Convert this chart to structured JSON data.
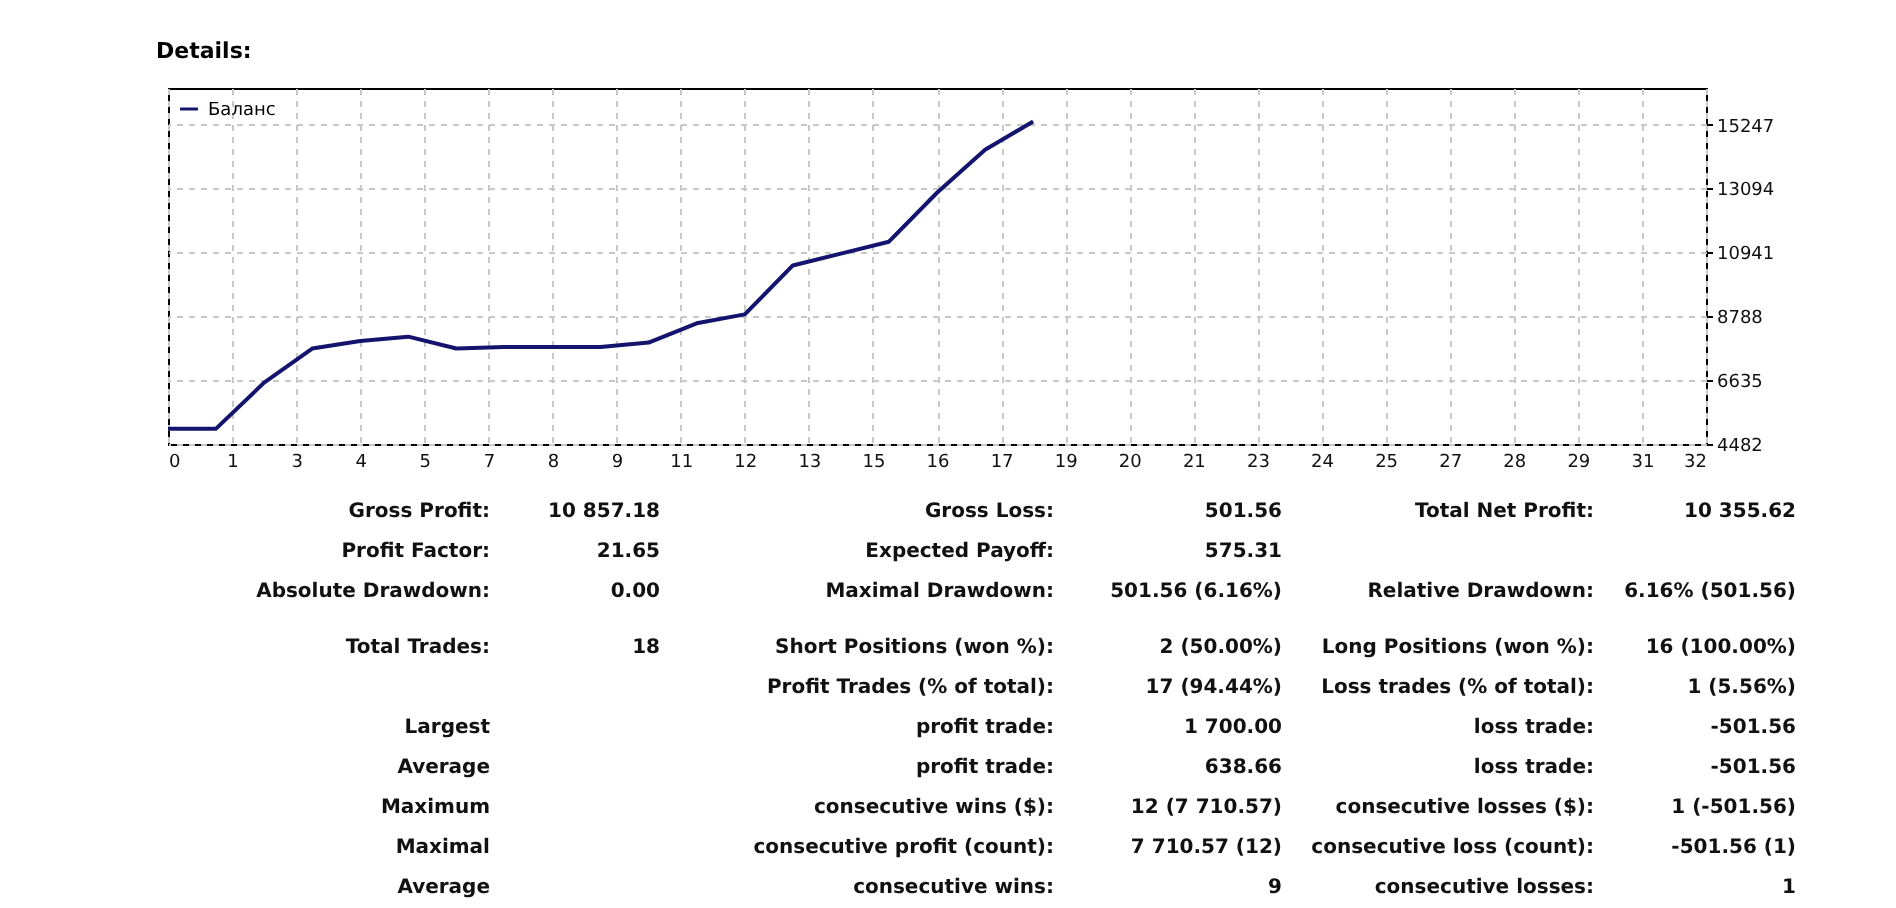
{
  "chart_data": {
    "type": "line",
    "title": "Details:",
    "x": [
      0,
      1,
      2,
      3,
      4,
      5,
      6,
      7,
      8,
      9,
      10,
      11,
      12,
      13,
      14,
      15,
      16,
      17,
      18
    ],
    "series": [
      {
        "name": "Баланс",
        "color": "#14146e",
        "values": [
          5000,
          5000,
          6550,
          7700,
          7950,
          8100,
          7700,
          7750,
          7750,
          7750,
          7900,
          8550,
          8850,
          10500,
          10900,
          11300,
          12950,
          14400,
          15350
        ]
      }
    ],
    "xlim": [
      0,
      32
    ],
    "xticks": [
      0,
      {
        "value": 1.333,
        "label": "1"
      },
      {
        "value": 2.667,
        "label": "3"
      },
      4,
      {
        "value": 5.333,
        "label": "5"
      },
      {
        "value": 6.667,
        "label": "7"
      },
      8,
      {
        "value": 9.333,
        "label": "9"
      },
      {
        "value": 10.667,
        "label": "11"
      },
      12,
      {
        "value": 13.333,
        "label": "13"
      },
      {
        "value": 14.667,
        "label": "15"
      },
      16,
      {
        "value": 17.333,
        "label": "17"
      },
      {
        "value": 18.667,
        "label": "19"
      },
      20,
      {
        "value": 21.333,
        "label": "21"
      },
      {
        "value": 22.667,
        "label": "23"
      },
      24,
      {
        "value": 25.333,
        "label": "25"
      },
      {
        "value": 26.667,
        "label": "27"
      },
      28,
      {
        "value": 29.333,
        "label": "29"
      },
      {
        "value": 30.667,
        "label": "31"
      },
      32
    ],
    "ylim": [
      4482,
      16480
    ],
    "yticks": [
      4482,
      6635,
      8788,
      10941,
      13094,
      15247
    ],
    "grid": true,
    "legend": "top left",
    "marker": "none",
    "line_style": "solid",
    "annotations": [
      "Gross Profit:",
      "10 857.18",
      "Gross Loss:",
      "501.56",
      "Total Net Profit:",
      "10 355.62",
      "Profit Factor:",
      "21.65",
      "Expected Payoff:",
      "575.31",
      "Absolute Drawdown:",
      "0.00",
      "Maximal Drawdown:",
      "501.56 (6.16%)",
      "Relative Drawdown:",
      "6.16% (501.56)",
      "Total Trades:",
      "18",
      "Short Positions (won %):",
      "2 (50.00%)",
      "Long Positions (won %):",
      "16 (100.00%)",
      "Profit Trades (% of total):",
      "17 (94.44%)",
      "Loss trades (% of total):",
      "1 (5.56%)",
      "Largest",
      "profit trade:",
      "1 700.00",
      "loss trade:",
      "-501.56",
      "Average",
      "profit trade:",
      "638.66",
      "loss trade:",
      "-501.56",
      "Maximum",
      "consecutive wins ($):",
      "12 (7 710.57)",
      "consecutive losses ($):",
      "1 (-501.56)",
      "Maximal",
      "consecutive profit (count):",
      "7 710.57 (12)",
      "consecutive loss (count):",
      "-501.56 (1)",
      "Average",
      "consecutive wins:",
      "9",
      "consecutive losses:",
      "1"
    ]
  }
}
